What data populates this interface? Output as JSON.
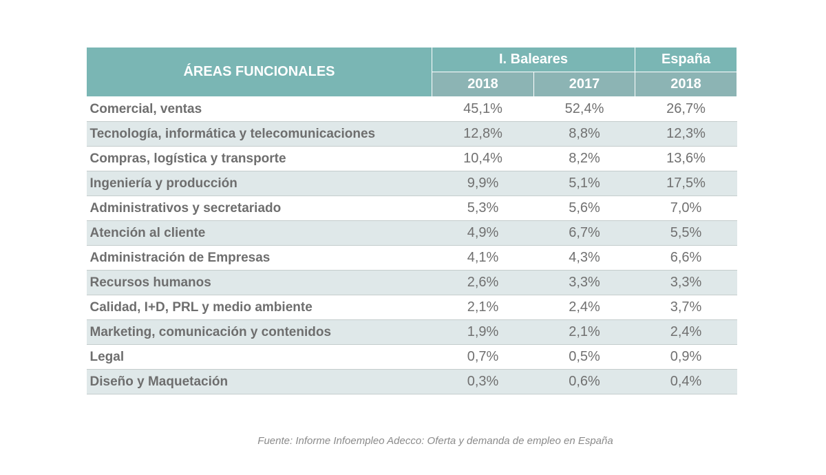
{
  "chart_data": {
    "type": "table",
    "header": {
      "area_label": "ÁREAS FUNCIONALES",
      "groups": [
        "I. Baleares",
        "España"
      ],
      "years": [
        "2018",
        "2017",
        "2018"
      ]
    },
    "columns": [
      "I. Baleares 2018",
      "I. Baleares 2017",
      "España 2018"
    ],
    "rows": [
      {
        "label": "Comercial, ventas",
        "values": [
          "45,1%",
          "52,4%",
          "26,7%"
        ]
      },
      {
        "label": "Tecnología, informática y telecomunicaciones",
        "values": [
          "12,8%",
          "8,8%",
          "12,3%"
        ]
      },
      {
        "label": "Compras, logística y transporte",
        "values": [
          "10,4%",
          "8,2%",
          "13,6%"
        ]
      },
      {
        "label": "Ingeniería y producción",
        "values": [
          "9,9%",
          "5,1%",
          "17,5%"
        ]
      },
      {
        "label": "Administrativos y secretariado",
        "values": [
          "5,3%",
          "5,6%",
          "7,0%"
        ]
      },
      {
        "label": "Atención al cliente",
        "values": [
          "4,9%",
          "6,7%",
          "5,5%"
        ]
      },
      {
        "label": "Administración de Empresas",
        "values": [
          "4,1%",
          "4,3%",
          "6,6%"
        ]
      },
      {
        "label": "Recursos humanos",
        "values": [
          "2,6%",
          "3,3%",
          "3,3%"
        ]
      },
      {
        "label": "Calidad, I+D, PRL y medio ambiente",
        "values": [
          "2,1%",
          "2,4%",
          "3,7%"
        ]
      },
      {
        "label": "Marketing, comunicación y contenidos",
        "values": [
          "1,9%",
          "2,1%",
          "2,4%"
        ]
      },
      {
        "label": "Legal",
        "values": [
          "0,7%",
          "0,5%",
          "0,9%"
        ]
      },
      {
        "label": "Diseño y Maquetación",
        "values": [
          "0,3%",
          "0,6%",
          "0,4%"
        ]
      }
    ],
    "source": "Fuente: Informe Infoempleo Adecco: Oferta y demanda de empleo en España"
  },
  "colors": {
    "header": "#7ab6b4",
    "subheader": "#8cb4b4",
    "alt_row": "#dfe8e9",
    "text": "#6e6e6e"
  }
}
